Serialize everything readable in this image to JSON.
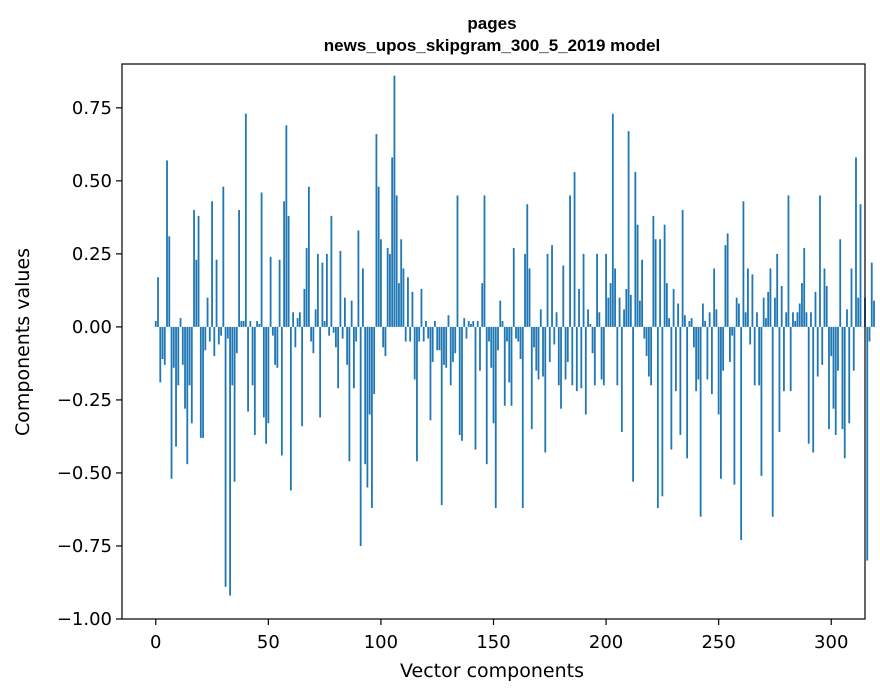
{
  "chart_data": {
    "type": "bar",
    "title_line1": "pages",
    "title_line2": "news_upos_skipgram_300_5_2019 model",
    "xlabel": "Vector components",
    "ylabel": "Components values",
    "xlim": [
      -15,
      315
    ],
    "ylim": [
      -1.0,
      0.9
    ],
    "xticks": [
      0,
      50,
      100,
      150,
      200,
      250,
      300
    ],
    "xtick_labels": [
      "0",
      "50",
      "100",
      "150",
      "200",
      "250",
      "300"
    ],
    "yticks": [
      -1.0,
      -0.75,
      -0.5,
      -0.25,
      0.0,
      0.25,
      0.5,
      0.75
    ],
    "ytick_labels": [
      "−1.00",
      "−0.75",
      "−0.50",
      "−0.25",
      "0.00",
      "0.25",
      "0.50",
      "0.75"
    ],
    "bar_color": "#1f77b4",
    "values": [
      0.02,
      0.17,
      -0.19,
      -0.11,
      -0.13,
      0.57,
      0.31,
      -0.52,
      -0.14,
      -0.41,
      -0.2,
      0.03,
      -0.13,
      -0.28,
      -0.47,
      -0.2,
      -0.33,
      0.4,
      0.23,
      0.38,
      -0.38,
      -0.38,
      -0.08,
      0.1,
      -0.05,
      0.43,
      -0.1,
      0.23,
      -0.06,
      -0.03,
      0.48,
      -0.89,
      -0.04,
      -0.92,
      -0.2,
      -0.53,
      -0.09,
      0.4,
      0.02,
      0.02,
      0.73,
      -0.29,
      0.02,
      -0.2,
      -0.37,
      0.02,
      0.01,
      0.46,
      -0.31,
      -0.4,
      -0.33,
      0.24,
      -0.03,
      -0.13,
      -0.14,
      0.23,
      -0.44,
      0.43,
      0.69,
      0.38,
      -0.56,
      0.05,
      -0.07,
      0.03,
      0.05,
      -0.34,
      0.13,
      0.27,
      0.48,
      -0.05,
      -0.09,
      0.06,
      0.25,
      -0.31,
      0.22,
      0.02,
      0.25,
      -0.03,
      0.38,
      -0.02,
      -0.07,
      -0.21,
      0.26,
      -0.04,
      0.1,
      -0.13,
      -0.46,
      0.09,
      -0.21,
      -0.05,
      0.33,
      -0.75,
      0.2,
      -0.47,
      -0.55,
      -0.3,
      -0.62,
      -0.23,
      0.66,
      0.48,
      0.3,
      -0.07,
      -0.1,
      0.27,
      0.25,
      0.58,
      0.86,
      0.45,
      0.15,
      0.3,
      0.2,
      -0.05,
      0.17,
      -0.05,
      0.12,
      -0.18,
      -0.46,
      -0.05,
      0.13,
      -0.05,
      0.02,
      -0.04,
      -0.32,
      -0.12,
      0.02,
      -0.08,
      -0.08,
      -0.61,
      -0.13,
      -0.14,
      0.04,
      -0.2,
      -0.12,
      -0.09,
      0.45,
      -0.37,
      -0.39,
      0.03,
      -0.04,
      0.02,
      0.01,
      0.02,
      -0.42,
      0.02,
      -0.15,
      0.15,
      0.45,
      -0.47,
      -0.05,
      -0.14,
      -0.33,
      -0.62,
      -0.08,
      0.09,
      0.02,
      -0.27,
      -0.05,
      -0.19,
      -0.27,
      0.27,
      -0.04,
      -0.05,
      -0.11,
      -0.62,
      0.25,
      0.42,
      0.2,
      -0.35,
      -0.07,
      -0.15,
      -0.18,
      0.06,
      -0.17,
      -0.43,
      0.25,
      -0.12,
      0.28,
      -0.06,
      0.05,
      -0.2,
      -0.28,
      0.21,
      -0.18,
      -0.12,
      0.45,
      -0.2,
      0.53,
      -0.22,
      0.13,
      -0.21,
      0.25,
      -0.3,
      0.06,
      0.01,
      -0.09,
      -0.2,
      0.25,
      0.05,
      -0.18,
      -0.2,
      0.25,
      0.1,
      0.15,
      0.73,
      0.2,
      -0.2,
      0.1,
      -0.36,
      0.06,
      0.13,
      0.67,
      0.11,
      -0.53,
      0.53,
      0.35,
      0.09,
      0.23,
      -0.04,
      -0.1,
      -0.17,
      -0.2,
      0.38,
      0.3,
      -0.62,
      0.3,
      -0.58,
      0.35,
      0.15,
      0.03,
      -0.42,
      0.13,
      -0.22,
      0.08,
      -0.37,
      0.4,
      0.04,
      -0.45,
      0.02,
      0.03,
      -0.07,
      -0.22,
      -0.18,
      -0.65,
      0.08,
      0.02,
      -0.18,
      0.05,
      -0.23,
      0.2,
      0.06,
      -0.3,
      -0.52,
      -0.15,
      0.28,
      0.32,
      -0.12,
      -0.03,
      -0.54,
      0.1,
      0.08,
      -0.73,
      0.43,
      0.05,
      0.2,
      -0.06,
      0.18,
      -0.2,
      0.05,
      -0.2,
      -0.51,
      0.1,
      0.03,
      0.12,
      0.2,
      -0.65,
      0.1,
      0.25,
      -0.36,
      0.14,
      -0.22,
      0.05,
      0.45,
      -0.22,
      0.05,
      0.02,
      0.05,
      0.08,
      0.15,
      0.27,
      0.05,
      -0.4,
      0.05,
      -0.43,
      0.12,
      -0.17,
      0.45,
      -0.13,
      0.2,
      0.14,
      -0.35,
      -0.1,
      -0.28,
      -0.37,
      -0.15,
      0.3,
      -0.35,
      -0.45,
      0.06,
      -0.33,
      0.2,
      -0.15,
      0.58,
      0.1,
      0.42,
      0.0,
      0.1,
      -0.8,
      -0.05,
      0.22,
      0.09
    ]
  }
}
